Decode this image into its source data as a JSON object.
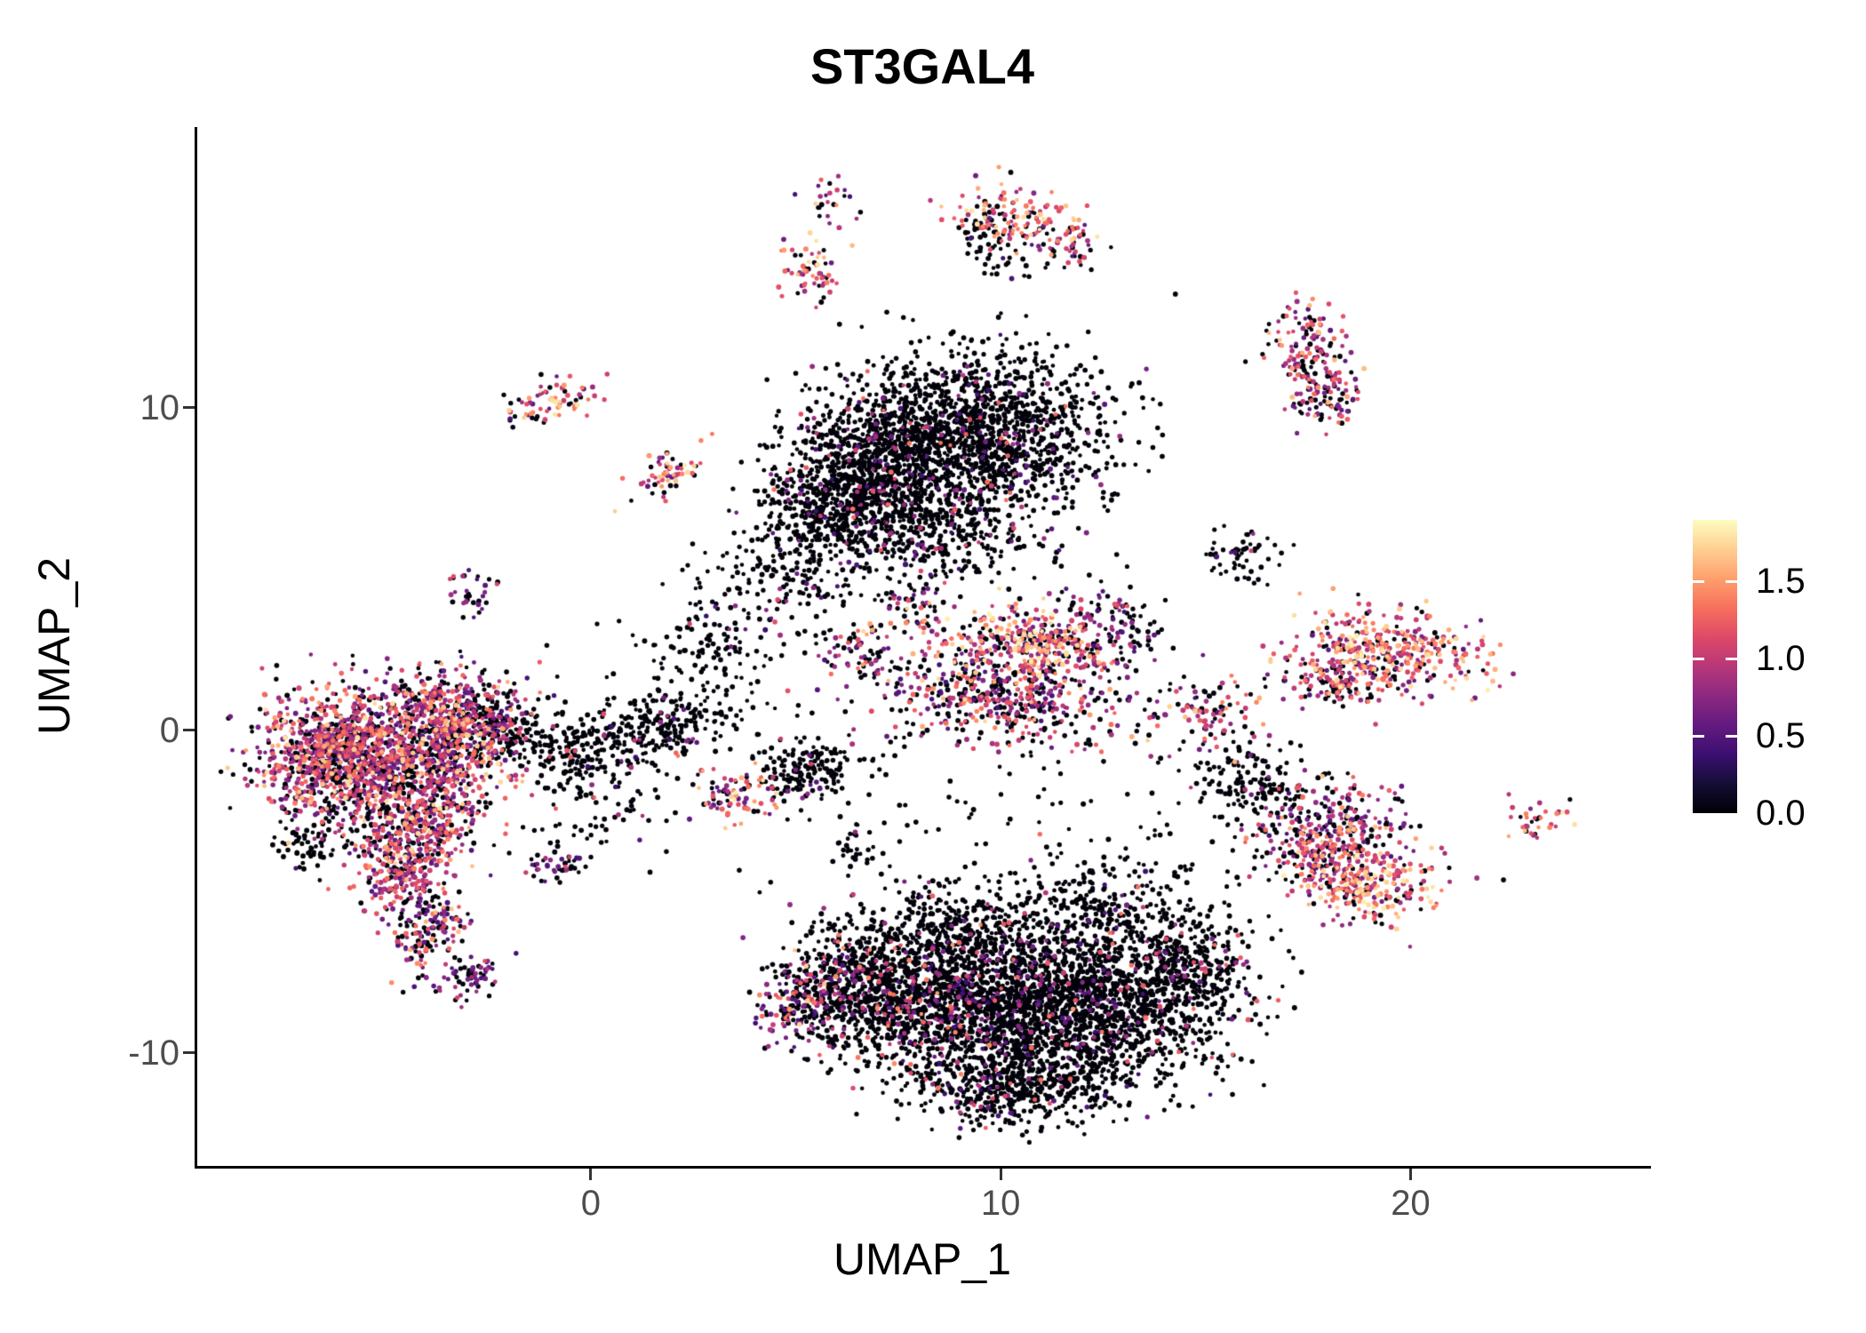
{
  "chart_data": {
    "type": "scatter",
    "title": "ST3GAL4",
    "xlabel": "UMAP_1",
    "ylabel": "UMAP_2",
    "xlim": [
      -9.6,
      25.8
    ],
    "ylim": [
      -13.5,
      18.7
    ],
    "grid": false,
    "background": "#ffffff",
    "x_ticks": [
      {
        "label": "0",
        "value": 0
      },
      {
        "label": "10",
        "value": 10
      },
      {
        "label": "20",
        "value": 20
      }
    ],
    "y_ticks": [
      {
        "label": "10",
        "value": 10
      },
      {
        "label": "0",
        "value": 0
      },
      {
        "label": "-10",
        "value": -10
      }
    ],
    "colorbar": {
      "position": "right",
      "vmin": 0.0,
      "vmax": 1.9,
      "ticks": [
        {
          "label": "1.5",
          "value": 1.5
        },
        {
          "label": "1.0",
          "value": 1.0
        },
        {
          "label": "0.5",
          "value": 0.5
        },
        {
          "label": "0.0",
          "value": 0.0
        }
      ],
      "colormap_name": "magma",
      "colormap_stops": [
        [
          0.0,
          "#000004"
        ],
        [
          0.1,
          "#140e36"
        ],
        [
          0.2,
          "#3b0f70"
        ],
        [
          0.3,
          "#641a80"
        ],
        [
          0.4,
          "#8c2981"
        ],
        [
          0.5,
          "#b73779"
        ],
        [
          0.6,
          "#de4968"
        ],
        [
          0.7,
          "#f7705c"
        ],
        [
          0.8,
          "#fe9f6d"
        ],
        [
          0.9,
          "#fecf92"
        ],
        [
          1.0,
          "#fcfdbf"
        ]
      ]
    },
    "point_color_zero": "#000004",
    "expression_profiles": {
      "dark": [
        [
          0.93,
          0.0,
          0.04
        ],
        [
          0.05,
          0.35,
          0.85
        ],
        [
          0.02,
          0.85,
          1.35
        ]
      ],
      "darkMid": [
        [
          0.86,
          0.0,
          0.04
        ],
        [
          0.09,
          0.35,
          0.9
        ],
        [
          0.05,
          0.9,
          1.5
        ]
      ],
      "mixed": [
        [
          0.42,
          0.0,
          0.05
        ],
        [
          0.28,
          0.4,
          0.9
        ],
        [
          0.22,
          0.9,
          1.35
        ],
        [
          0.08,
          1.35,
          1.75
        ]
      ],
      "bright": [
        [
          0.18,
          0.0,
          0.05
        ],
        [
          0.22,
          0.5,
          0.95
        ],
        [
          0.33,
          0.95,
          1.4
        ],
        [
          0.27,
          1.4,
          1.85
        ]
      ],
      "purple": [
        [
          0.45,
          0.0,
          0.05
        ],
        [
          0.4,
          0.4,
          0.85
        ],
        [
          0.15,
          0.85,
          1.2
        ]
      ],
      "purpleBright": [
        [
          0.3,
          0.0,
          0.05
        ],
        [
          0.35,
          0.45,
          0.95
        ],
        [
          0.25,
          0.95,
          1.35
        ],
        [
          0.1,
          1.35,
          1.7
        ]
      ],
      "leftMix": [
        [
          0.36,
          0.0,
          0.05
        ],
        [
          0.3,
          0.45,
          0.95
        ],
        [
          0.24,
          0.95,
          1.35
        ],
        [
          0.1,
          1.35,
          1.8
        ]
      ]
    },
    "cluster_fields": [
      "center_x",
      "center_y",
      "sd_x",
      "sd_y",
      "n_cells",
      "rotation_deg",
      "expression_profile"
    ],
    "clusters": [
      [
        5.9,
        16.4,
        0.28,
        0.38,
        25,
        0,
        "mixed"
      ],
      [
        10.4,
        15.9,
        0.85,
        0.5,
        130,
        -15,
        "bright"
      ],
      [
        11.4,
        15.1,
        0.5,
        0.28,
        45,
        -35,
        "mixed"
      ],
      [
        9.6,
        15.4,
        0.35,
        0.5,
        45,
        0,
        "dark"
      ],
      [
        10.2,
        14.3,
        0.5,
        0.3,
        22,
        0,
        "dark"
      ],
      [
        5.35,
        14.2,
        0.38,
        0.5,
        60,
        0,
        "bright"
      ],
      [
        17.5,
        11.8,
        0.5,
        0.85,
        140,
        15,
        "purpleBright"
      ],
      [
        17.9,
        10.4,
        0.5,
        0.5,
        90,
        0,
        "mixed"
      ],
      [
        -0.7,
        10.4,
        0.5,
        0.32,
        50,
        0,
        "bright"
      ],
      [
        -1.6,
        9.9,
        0.3,
        0.25,
        22,
        0,
        "mixed"
      ],
      [
        1.9,
        8.0,
        0.6,
        0.3,
        60,
        40,
        "bright"
      ],
      [
        -2.9,
        4.3,
        0.28,
        0.5,
        32,
        0,
        "purple"
      ],
      [
        9.4,
        9.1,
        1.6,
        1.3,
        1500,
        0,
        "dark"
      ],
      [
        7.0,
        8.3,
        1.15,
        1.1,
        750,
        0,
        "dark"
      ],
      [
        5.8,
        6.9,
        0.85,
        0.95,
        380,
        0,
        "dark"
      ],
      [
        8.4,
        6.1,
        1.3,
        0.8,
        320,
        0,
        "dark"
      ],
      [
        4.7,
        4.7,
        0.95,
        0.95,
        170,
        0,
        "dark"
      ],
      [
        3.0,
        2.4,
        0.75,
        0.95,
        110,
        30,
        "dark"
      ],
      [
        1.4,
        0.0,
        0.95,
        0.6,
        280,
        15,
        "dark"
      ],
      [
        -0.4,
        -0.9,
        0.55,
        0.4,
        90,
        0,
        "dark"
      ],
      [
        10.7,
        2.7,
        1.05,
        0.55,
        320,
        -10,
        "bright"
      ],
      [
        10.0,
        1.1,
        1.5,
        0.7,
        480,
        -8,
        "mixed"
      ],
      [
        12.6,
        3.2,
        0.65,
        0.65,
        130,
        0,
        "purple"
      ],
      [
        6.6,
        2.2,
        0.55,
        0.55,
        75,
        0,
        "mixed"
      ],
      [
        7.9,
        3.8,
        0.45,
        0.5,
        50,
        0,
        "mixed"
      ],
      [
        3.6,
        -2.1,
        0.5,
        0.42,
        75,
        0,
        "bright"
      ],
      [
        5.2,
        -1.2,
        0.6,
        0.5,
        170,
        0,
        "dark"
      ],
      [
        6.5,
        -3.6,
        0.28,
        0.32,
        26,
        0,
        "dark"
      ],
      [
        -0.8,
        -4.2,
        0.38,
        0.3,
        42,
        0,
        "purple"
      ],
      [
        15.9,
        5.4,
        0.5,
        0.42,
        60,
        0,
        "dark"
      ],
      [
        19.4,
        2.4,
        1.15,
        0.6,
        400,
        -8,
        "bright"
      ],
      [
        18.2,
        1.5,
        0.65,
        0.45,
        110,
        0,
        "mixed"
      ],
      [
        15.2,
        0.5,
        0.55,
        0.55,
        95,
        0,
        "mixed"
      ],
      [
        15.9,
        -1.6,
        0.75,
        0.65,
        130,
        0,
        "dark"
      ],
      [
        18.3,
        -3.2,
        0.85,
        0.75,
        300,
        0,
        "purpleBright"
      ],
      [
        18.9,
        -4.7,
        0.95,
        0.55,
        280,
        -10,
        "bright"
      ],
      [
        23.1,
        -2.8,
        0.38,
        0.32,
        35,
        0,
        "bright"
      ],
      [
        16.8,
        -2.6,
        0.95,
        0.95,
        80,
        0,
        "dark"
      ],
      [
        -4.8,
        -0.6,
        1.55,
        1.05,
        1300,
        0,
        "leftMix"
      ],
      [
        -6.3,
        -1.0,
        0.85,
        0.85,
        480,
        0,
        "leftMix"
      ],
      [
        -3.2,
        0.5,
        0.85,
        0.75,
        320,
        0,
        "mixed"
      ],
      [
        -4.3,
        -2.9,
        0.85,
        0.75,
        380,
        0,
        "leftMix"
      ],
      [
        -4.6,
        -4.6,
        0.55,
        0.75,
        210,
        0,
        "purpleBright"
      ],
      [
        -3.9,
        -6.3,
        0.42,
        0.65,
        130,
        -20,
        "mixed"
      ],
      [
        -3.0,
        -7.7,
        0.38,
        0.42,
        65,
        -35,
        "purple"
      ],
      [
        -1.8,
        0.0,
        0.65,
        0.55,
        130,
        0,
        "dark"
      ],
      [
        -6.9,
        -3.5,
        0.42,
        0.42,
        60,
        0,
        "dark"
      ],
      [
        0.2,
        -2.5,
        0.8,
        0.6,
        60,
        20,
        "dark"
      ],
      [
        11.9,
        -8.6,
        1.75,
        1.25,
        1900,
        0,
        "dark"
      ],
      [
        8.6,
        -8.4,
        1.35,
        1.15,
        1150,
        0,
        "darkMid"
      ],
      [
        6.3,
        -7.9,
        0.85,
        0.95,
        480,
        0,
        "darkMid"
      ],
      [
        5.1,
        -8.4,
        0.5,
        0.65,
        130,
        0,
        "mixed"
      ],
      [
        10.4,
        -11.1,
        1.25,
        0.55,
        420,
        0,
        "dark"
      ],
      [
        9.1,
        -6.0,
        1.25,
        0.75,
        300,
        0,
        "dark"
      ],
      [
        12.6,
        -5.6,
        1.25,
        0.85,
        260,
        0,
        "dark"
      ],
      [
        14.6,
        -7.3,
        0.85,
        0.85,
        320,
        0,
        "dark"
      ],
      [
        7.0,
        0.5,
        3.5,
        2.5,
        100,
        0,
        "dark"
      ],
      [
        10.0,
        -3.5,
        3.0,
        1.5,
        80,
        0,
        "dark"
      ]
    ]
  }
}
